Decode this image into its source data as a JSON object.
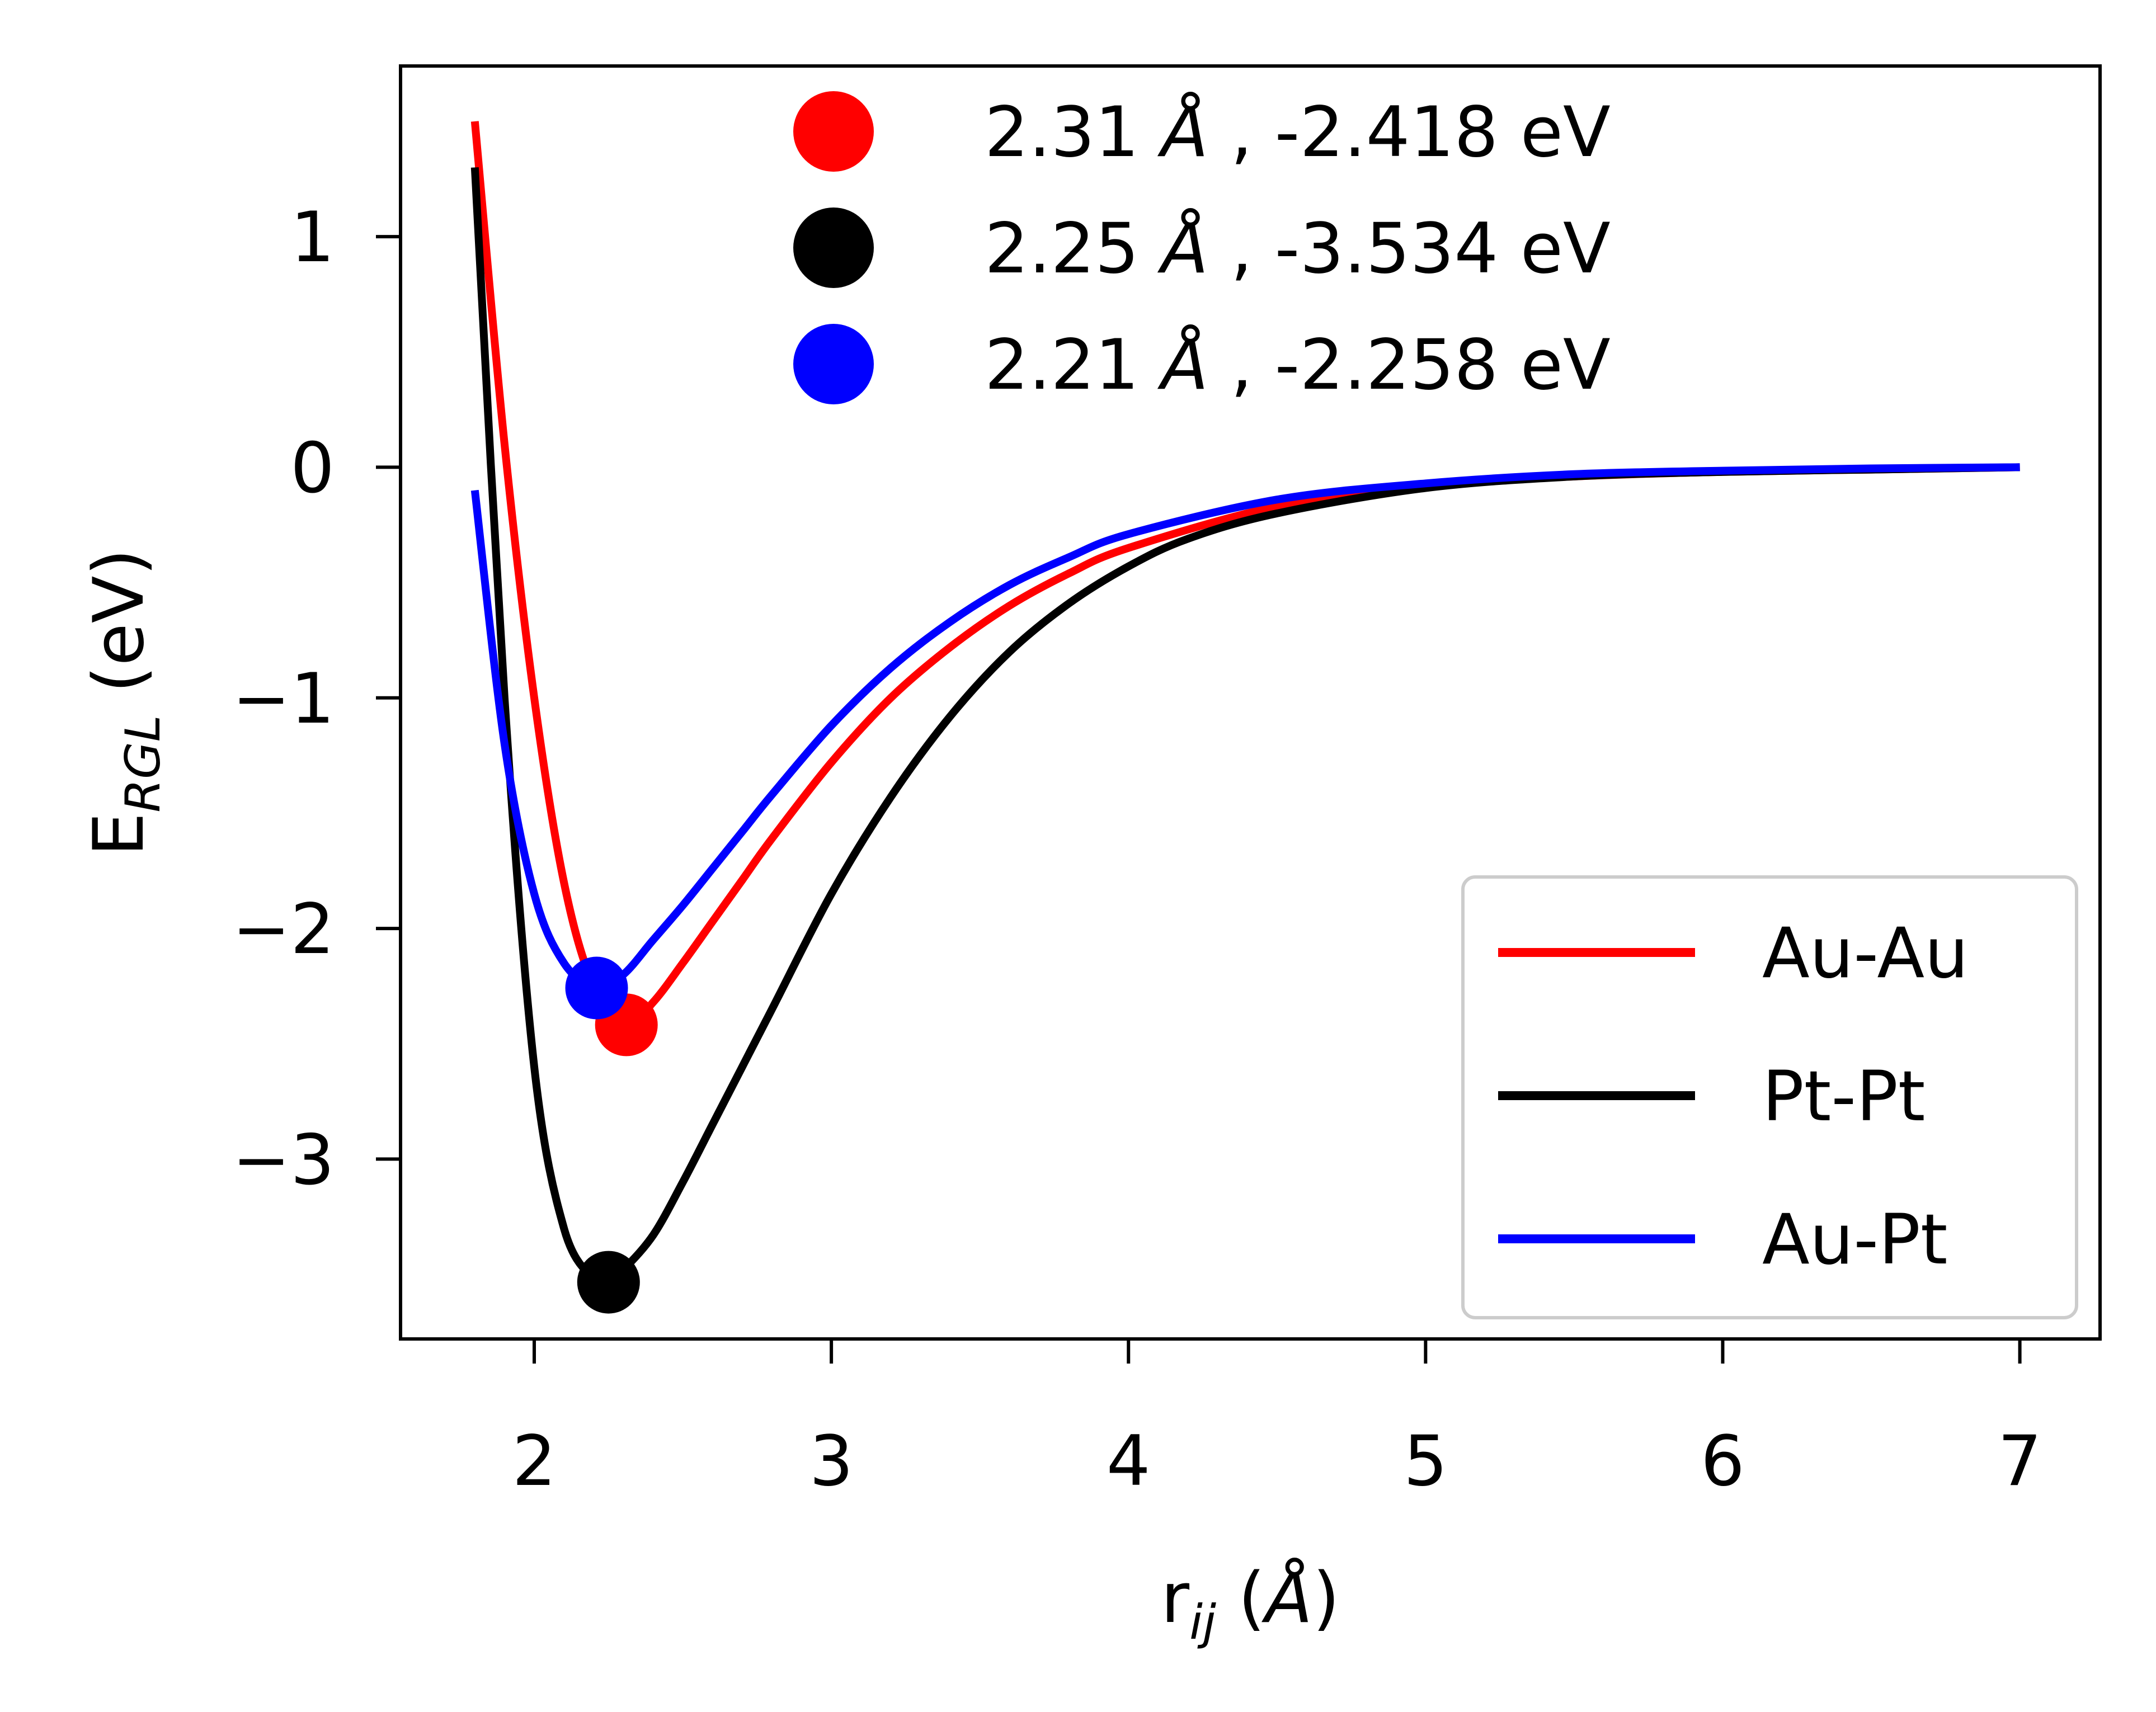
{
  "chart_data": {
    "type": "line",
    "xlabel": {
      "base": "r",
      "sub": "ij",
      "unit": "Å",
      "open": " (",
      "close": ")"
    },
    "ylabel": {
      "base": "E",
      "sub": "RGL",
      "rest": " (eV)"
    },
    "xlim": [
      1.55,
      7.27
    ],
    "ylim": [
      -3.78,
      1.74
    ],
    "xticks": [
      {
        "value": 2,
        "label": "2"
      },
      {
        "value": 3,
        "label": "3"
      },
      {
        "value": 4,
        "label": "4"
      },
      {
        "value": 5,
        "label": "5"
      },
      {
        "value": 6,
        "label": "6"
      },
      {
        "value": 7,
        "label": "7"
      }
    ],
    "yticks": [
      {
        "value": 1,
        "label": "1"
      },
      {
        "value": 0,
        "label": "0"
      },
      {
        "value": -1,
        "label": "−1"
      },
      {
        "value": -2,
        "label": "−2"
      },
      {
        "value": -3,
        "label": "−3"
      }
    ],
    "grid": false,
    "series": [
      {
        "name": "Au-Au",
        "color": "#ff0000",
        "x": [
          1.8,
          1.9,
          2.0,
          2.1,
          2.2,
          2.31,
          2.4,
          2.5,
          2.6,
          2.7,
          2.8,
          3.0,
          3.2,
          3.4,
          3.6,
          3.8,
          4.0,
          4.5,
          5.0,
          5.5,
          6.0,
          6.5,
          7.0
        ],
        "y": [
          1.5,
          0.1,
          -1.0,
          -1.8,
          -2.25,
          -2.418,
          -2.32,
          -2.15,
          -1.97,
          -1.79,
          -1.61,
          -1.28,
          -1.0,
          -0.78,
          -0.6,
          -0.46,
          -0.35,
          -0.17,
          -0.08,
          -0.04,
          -0.02,
          -0.01,
          0.0
        ]
      },
      {
        "name": "Pt-Pt",
        "color": "#000000",
        "x": [
          1.8,
          1.9,
          2.0,
          2.1,
          2.2,
          2.25,
          2.3,
          2.4,
          2.5,
          2.6,
          2.7,
          2.8,
          3.0,
          3.2,
          3.4,
          3.6,
          3.8,
          4.0,
          4.2,
          4.5,
          5.0,
          5.5,
          6.0,
          6.5,
          7.0
        ],
        "y": [
          1.3,
          -1.0,
          -2.6,
          -3.3,
          -3.52,
          -3.534,
          -3.48,
          -3.33,
          -3.1,
          -2.85,
          -2.6,
          -2.35,
          -1.85,
          -1.43,
          -1.08,
          -0.8,
          -0.59,
          -0.43,
          -0.31,
          -0.2,
          -0.09,
          -0.04,
          -0.02,
          -0.01,
          0.0
        ]
      },
      {
        "name": "Au-Pt",
        "color": "#0000ff",
        "x": [
          1.8,
          1.9,
          2.0,
          2.1,
          2.21,
          2.3,
          2.4,
          2.5,
          2.6,
          2.7,
          2.8,
          3.0,
          3.2,
          3.4,
          3.6,
          3.8,
          4.0,
          4.5,
          5.0,
          5.5,
          6.0,
          6.5,
          7.0
        ],
        "y": [
          -0.1,
          -1.2,
          -1.85,
          -2.15,
          -2.258,
          -2.2,
          -2.05,
          -1.9,
          -1.74,
          -1.58,
          -1.42,
          -1.12,
          -0.87,
          -0.67,
          -0.51,
          -0.39,
          -0.29,
          -0.14,
          -0.07,
          -0.03,
          -0.015,
          -0.005,
          0.0
        ]
      }
    ],
    "minima": [
      {
        "x": 2.31,
        "y": -2.418,
        "color": "#ff0000",
        "label": {
          "r": "2.31 ",
          "unit": "Å",
          "rest": " , -2.418 eV"
        }
      },
      {
        "x": 2.25,
        "y": -3.534,
        "color": "#000000",
        "label": {
          "r": "2.25 ",
          "unit": "Å",
          "rest": " , -3.534 eV"
        }
      },
      {
        "x": 2.21,
        "y": -2.258,
        "color": "#0000ff",
        "label": {
          "r": "2.21 ",
          "unit": "Å",
          "rest": " , -2.258 eV"
        }
      }
    ],
    "legend": {
      "placement": "lower-right",
      "entries": [
        {
          "label": "Au-Au",
          "color": "#ff0000"
        },
        {
          "label": "Pt-Pt",
          "color": "#000000"
        },
        {
          "label": "Au-Pt",
          "color": "#0000ff"
        }
      ]
    },
    "minima_legend_placement": "upper-center"
  }
}
